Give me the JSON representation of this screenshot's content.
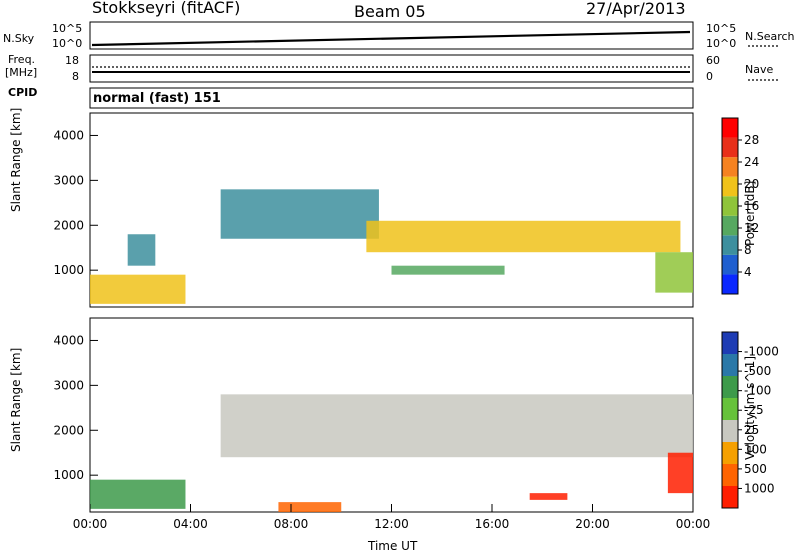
{
  "header": {
    "station": "Stokkseyri (fitACF)",
    "beam": "Beam 05",
    "date": "27/Apr/2013"
  },
  "noise_panel": {
    "left_label": "N.Sky",
    "right_label": "N.Search",
    "left_ticks": [
      "10^5",
      "10^0"
    ],
    "right_ticks": [
      "10^5",
      "10^0"
    ]
  },
  "freq_panel": {
    "left_label_line1": "Freq.",
    "left_label_line2": "[MHz]",
    "right_label": "Nave",
    "left_ticks": [
      "18",
      "8"
    ],
    "right_ticks": [
      "60",
      "0"
    ]
  },
  "cpid_panel": {
    "label": "CPID",
    "text": "normal (fast) 151"
  },
  "chart_data": [
    {
      "type": "heatmap",
      "title": "",
      "xlabel": "",
      "ylabel": "Slant Range [km]",
      "x_unit": "hours UT",
      "xlim": [
        0,
        24
      ],
      "ylim": [
        180,
        4500
      ],
      "yticks": [
        1000,
        2000,
        3000,
        4000
      ],
      "ytick_labels": [
        "1000",
        "2000",
        "3000",
        "4000"
      ],
      "colorbar": {
        "label": "Power [dB]",
        "ticks": [
          "4",
          "8",
          "12",
          "16",
          "20",
          "24",
          "28"
        ],
        "colors": [
          "#0a28ff",
          "#1f5fd0",
          "#3d8f9e",
          "#56a860",
          "#8fc43a",
          "#f0c21a",
          "#f58220",
          "#e8301a",
          "#ff0000"
        ]
      },
      "regions": [
        {
          "t0": 0.0,
          "t1": 3.8,
          "r0": 250,
          "r1": 900,
          "value": 18
        },
        {
          "t0": 1.5,
          "t1": 2.6,
          "r0": 1100,
          "r1": 1800,
          "value": 9
        },
        {
          "t0": 5.2,
          "t1": 11.5,
          "r0": 1700,
          "r1": 2800,
          "value": 8
        },
        {
          "t0": 11.0,
          "t1": 23.5,
          "r0": 1400,
          "r1": 2100,
          "value": 20
        },
        {
          "t0": 12.0,
          "t1": 16.5,
          "r0": 900,
          "r1": 1100,
          "value": 10
        },
        {
          "t0": 22.5,
          "t1": 24.0,
          "r0": 500,
          "r1": 1400,
          "value": 14
        }
      ]
    },
    {
      "type": "heatmap",
      "title": "",
      "xlabel": "Time UT",
      "ylabel": "Slant Range [km]",
      "x_unit": "hours UT",
      "xlim": [
        0,
        24
      ],
      "ylim": [
        180,
        4500
      ],
      "yticks": [
        1000,
        2000,
        3000,
        4000
      ],
      "ytick_labels": [
        "1000",
        "2000",
        "3000",
        "4000"
      ],
      "xticks": [
        0,
        4,
        8,
        12,
        16,
        20,
        24
      ],
      "xtick_labels": [
        "00:00",
        "04:00",
        "08:00",
        "12:00",
        "16:00",
        "20:00",
        "00:00"
      ],
      "colorbar": {
        "label": "Velocity [m s^-1]",
        "ticks": [
          "1000",
          "500",
          "100",
          "25",
          "-25",
          "-100",
          "-500",
          "-1000"
        ],
        "colors": [
          "#1e3cb4",
          "#2a78a8",
          "#3d9a4a",
          "#66c23a",
          "#c8c8c0",
          "#f5a000",
          "#ff6400",
          "#ff1e00"
        ]
      },
      "regions": [
        {
          "t0": 0.0,
          "t1": 3.8,
          "r0": 250,
          "r1": 900,
          "value": 100
        },
        {
          "t0": 5.2,
          "t1": 24.0,
          "r0": 1400,
          "r1": 2800,
          "value": 0
        },
        {
          "t0": 7.5,
          "t1": 10.0,
          "r0": 180,
          "r1": 400,
          "value": -100
        },
        {
          "t0": 17.5,
          "t1": 19.0,
          "r0": 450,
          "r1": 600,
          "value": -500
        },
        {
          "t0": 23.0,
          "t1": 24.0,
          "r0": 600,
          "r1": 1500,
          "value": -500
        }
      ]
    }
  ]
}
